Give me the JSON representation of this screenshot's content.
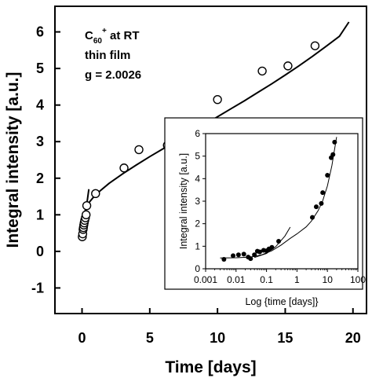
{
  "chart_data": [
    {
      "type": "scatter",
      "xlabel": "Time [days]",
      "ylabel": "Integral intensity [a.u.]",
      "xlim": [
        -2,
        21
      ],
      "ylim": [
        -1.7,
        6.7
      ],
      "xticks": [
        0,
        5,
        10,
        15,
        20
      ],
      "yticks": [
        -1,
        0,
        1,
        2,
        3,
        4,
        5,
        6
      ],
      "grid": false,
      "annotation": {
        "line1_main": "C",
        "line1_sub": "60",
        "line1_sup": "+",
        "line1_rest": " at RT",
        "line2": "thin film",
        "line3": "g = 2.0026"
      },
      "series": [
        {
          "marker": "open-circle",
          "x": [
            0.02,
            0.05,
            0.08,
            0.1,
            0.13,
            0.16,
            0.2,
            0.25,
            0.3,
            0.35,
            1.0,
            3.1,
            4.2,
            6.3,
            7.0,
            10.0,
            13.3,
            15.2,
            17.2
          ],
          "y": [
            0.4,
            0.48,
            0.6,
            0.65,
            0.72,
            0.78,
            0.85,
            0.92,
            1.0,
            1.25,
            1.58,
            2.28,
            2.78,
            2.9,
            3.38,
            4.15,
            4.93,
            5.07,
            5.62
          ]
        },
        {
          "marker": "line",
          "x": [
            0.15,
            0.5,
            1,
            2,
            3,
            4,
            5,
            6,
            7,
            8,
            9,
            10,
            11,
            12,
            13,
            14,
            15,
            16,
            17,
            18,
            19,
            19.7
          ],
          "y": [
            1.05,
            1.33,
            1.55,
            1.86,
            2.12,
            2.36,
            2.59,
            2.81,
            3.02,
            3.24,
            3.46,
            3.68,
            3.9,
            4.12,
            4.35,
            4.58,
            4.82,
            5.07,
            5.33,
            5.6,
            5.88,
            6.27
          ]
        },
        {
          "marker": "line",
          "x": [
            0.0,
            0.3,
            0.5
          ],
          "y": [
            0.4,
            1.15,
            1.7
          ]
        }
      ]
    },
    {
      "type": "scatter",
      "xlabel": "Log {time [days]}",
      "ylabel": "Integral intensity [a.u.]",
      "xscale": "log",
      "xlim": [
        0.001,
        100
      ],
      "ylim": [
        0,
        6
      ],
      "xticks": [
        "0.001",
        "0.01",
        "0.1",
        "1",
        "10",
        "100"
      ],
      "yticks": [
        0,
        1,
        2,
        3,
        4,
        5,
        6
      ],
      "grid": false,
      "series": [
        {
          "marker": "filled-circle",
          "x": [
            0.004,
            0.008,
            0.012,
            0.018,
            0.025,
            0.03,
            0.04,
            0.05,
            0.06,
            0.08,
            0.1,
            0.12,
            0.15,
            0.25,
            3.2,
            4.3,
            6.3,
            7.0,
            10.0,
            13.3,
            15.2,
            17.2
          ],
          "y": [
            0.42,
            0.58,
            0.62,
            0.65,
            0.52,
            0.45,
            0.62,
            0.78,
            0.75,
            0.82,
            0.8,
            0.88,
            0.95,
            1.22,
            2.28,
            2.75,
            2.9,
            3.38,
            4.15,
            4.93,
            5.07,
            5.62
          ]
        },
        {
          "marker": "line",
          "x": [
            0.003,
            0.01,
            0.03,
            0.07,
            0.15,
            0.3,
            0.6,
            1,
            2,
            3,
            5,
            7,
            10,
            14,
            20
          ],
          "y": [
            0.48,
            0.49,
            0.52,
            0.62,
            0.8,
            1.05,
            1.35,
            1.55,
            1.86,
            2.12,
            2.59,
            3.02,
            3.68,
            4.58,
            5.85
          ]
        },
        {
          "marker": "line",
          "x": [
            0.04,
            0.1,
            0.2,
            0.4,
            0.6
          ],
          "y": [
            0.5,
            0.68,
            0.98,
            1.45,
            1.85
          ]
        }
      ]
    }
  ]
}
